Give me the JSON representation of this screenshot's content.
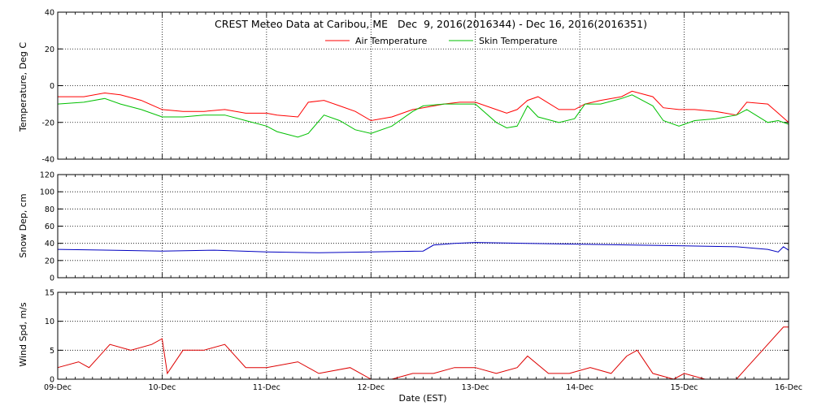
{
  "chart_data": {
    "title": "CREST Meteo Data at Caribou, ME   Dec  9, 2016(2016344) - Dec 16, 2016(2016351)",
    "xlabel": "Date (EST)",
    "x_ticks": [
      "09-Dec",
      "10-Dec",
      "11-Dec",
      "12-Dec",
      "13-Dec",
      "14-Dec",
      "15-Dec",
      "16-Dec"
    ],
    "grid": true,
    "panels": [
      {
        "type": "line",
        "ylabel": "Temperature, Deg C",
        "ylim": [
          -40,
          40
        ],
        "y_ticks": [
          40,
          20,
          0,
          -20,
          -40
        ],
        "legend": "top-center",
        "x_days": [
          0,
          0.25,
          0.45,
          0.6,
          0.8,
          1.0,
          1.2,
          1.4,
          1.6,
          1.8,
          2.0,
          2.1,
          2.3,
          2.4,
          2.55,
          2.7,
          2.85,
          3.0,
          3.2,
          3.4,
          3.5,
          3.7,
          3.85,
          4.0,
          4.2,
          4.3,
          4.4,
          4.5,
          4.6,
          4.8,
          4.95,
          5.05,
          5.2,
          5.4,
          5.5,
          5.7,
          5.8,
          5.95,
          6.1,
          6.3,
          6.5,
          6.6,
          6.8,
          6.9,
          7.0
        ],
        "series": [
          {
            "name": "Air Temperature",
            "color": "#ff0000",
            "values": [
              -6,
              -6,
              -4,
              -5,
              -8,
              -13,
              -14,
              -14,
              -13,
              -15,
              -15,
              -16,
              -17,
              -9,
              -8,
              -11,
              -14,
              -19,
              -17,
              -13,
              -12,
              -10,
              -9,
              -9,
              -13,
              -15,
              -13,
              -8,
              -6,
              -13,
              -13,
              -10,
              -8,
              -6,
              -3,
              -6,
              -12,
              -13,
              -13,
              -14,
              -16,
              -9,
              -10,
              -15,
              -20
            ]
          },
          {
            "name": "Skin Temperature",
            "color": "#00c000",
            "values": [
              -10,
              -9,
              -7,
              -10,
              -13,
              -17,
              -17,
              -16,
              -16,
              -19,
              -22,
              -25,
              -28,
              -26,
              -16,
              -19,
              -24,
              -26,
              -22,
              -14,
              -11,
              -10,
              -10,
              -10,
              -20,
              -23,
              -22,
              -11,
              -17,
              -20,
              -18,
              -10,
              -10,
              -7,
              -5,
              -11,
              -19,
              -22,
              -19,
              -18,
              -16,
              -13,
              -20,
              -19,
              -21
            ]
          }
        ]
      },
      {
        "type": "line",
        "ylabel": "Snow Dep, cm",
        "ylim": [
          0,
          120
        ],
        "y_ticks": [
          120,
          100,
          80,
          60,
          40,
          20,
          0
        ],
        "x_days": [
          0,
          0.5,
          1.0,
          1.5,
          2.0,
          2.5,
          3.0,
          3.5,
          3.6,
          3.8,
          4.0,
          4.5,
          5.0,
          5.5,
          6.0,
          6.5,
          6.8,
          6.9,
          6.95,
          7.0
        ],
        "series": [
          {
            "name": "",
            "color": "#0000c0",
            "values": [
              33,
              32,
              31,
              32,
              30,
              29,
              30,
              31,
              38,
              40,
              41,
              40,
              39,
              38,
              37,
              36,
              33,
              30,
              36,
              32
            ]
          }
        ]
      },
      {
        "type": "line",
        "ylabel": "Wind Spd, m/s",
        "ylim": [
          0,
          15
        ],
        "y_ticks": [
          15,
          10,
          5,
          0
        ],
        "x_days": [
          0,
          0.2,
          0.3,
          0.5,
          0.7,
          0.9,
          1.0,
          1.05,
          1.2,
          1.4,
          1.6,
          1.8,
          2.0,
          2.3,
          2.5,
          2.8,
          3.0,
          3.2,
          3.4,
          3.6,
          3.8,
          4.0,
          4.2,
          4.4,
          4.5,
          4.7,
          4.9,
          5.1,
          5.3,
          5.45,
          5.55,
          5.7,
          5.9,
          6.0,
          6.2,
          6.5,
          6.6,
          6.75,
          6.85,
          6.95,
          7.0
        ],
        "series": [
          {
            "name": "",
            "color": "#dd0000",
            "values": [
              2,
              3,
              2,
              6,
              5,
              6,
              7,
              1,
              5,
              5,
              6,
              2,
              2,
              3,
              1,
              2,
              0,
              0,
              1,
              1,
              2,
              2,
              1,
              2,
              4,
              1,
              1,
              2,
              1,
              4,
              5,
              1,
              0,
              1,
              0,
              0,
              2,
              5,
              7,
              9,
              9
            ]
          }
        ]
      }
    ]
  }
}
